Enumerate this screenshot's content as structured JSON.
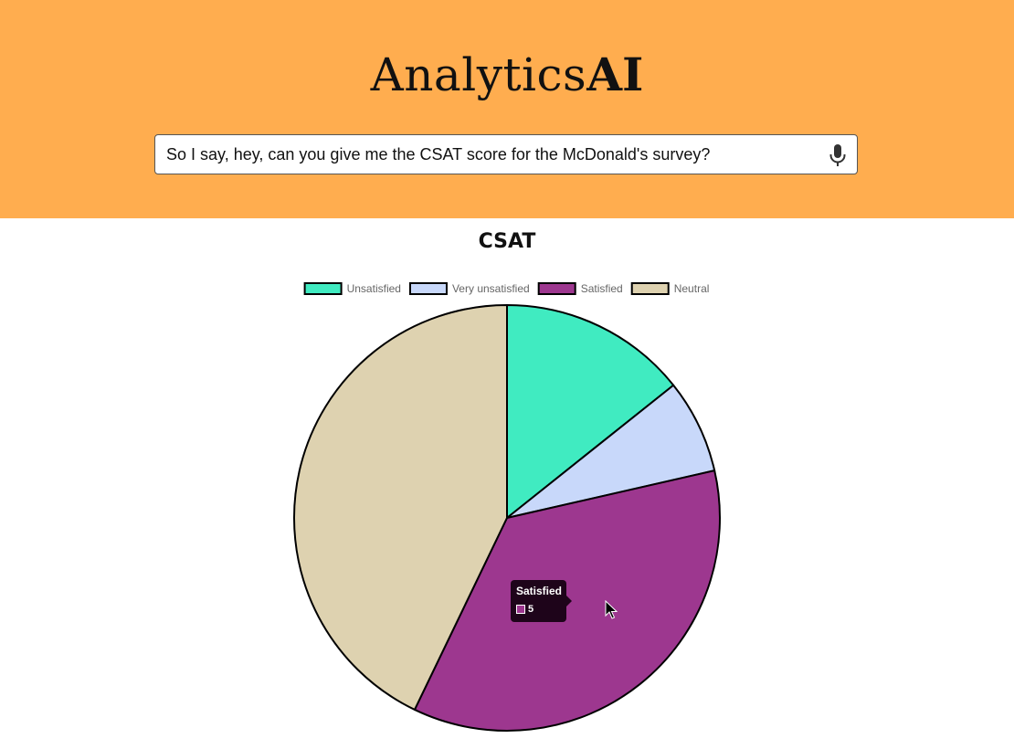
{
  "header": {
    "brand_light": "Analytics",
    "brand_bold": "AI",
    "background_color": "#FFAD4F"
  },
  "search": {
    "value": "So I say, hey, can you give me the CSAT score for the McDonald's survey?",
    "mic_icon": "microphone-icon"
  },
  "chart_data": {
    "type": "pie",
    "title": "CSAT",
    "legend_position": "top",
    "categories": [
      "Unsatisfied",
      "Very unsatisfied",
      "Satisfied",
      "Neutral"
    ],
    "values": [
      2,
      1,
      5,
      6
    ],
    "colors": [
      "#40EBC1",
      "#C8D8FA",
      "#9D378F",
      "#DED2B0"
    ]
  },
  "tooltip": {
    "title": "Satisfied",
    "value": "5",
    "color": "#9D378F"
  }
}
